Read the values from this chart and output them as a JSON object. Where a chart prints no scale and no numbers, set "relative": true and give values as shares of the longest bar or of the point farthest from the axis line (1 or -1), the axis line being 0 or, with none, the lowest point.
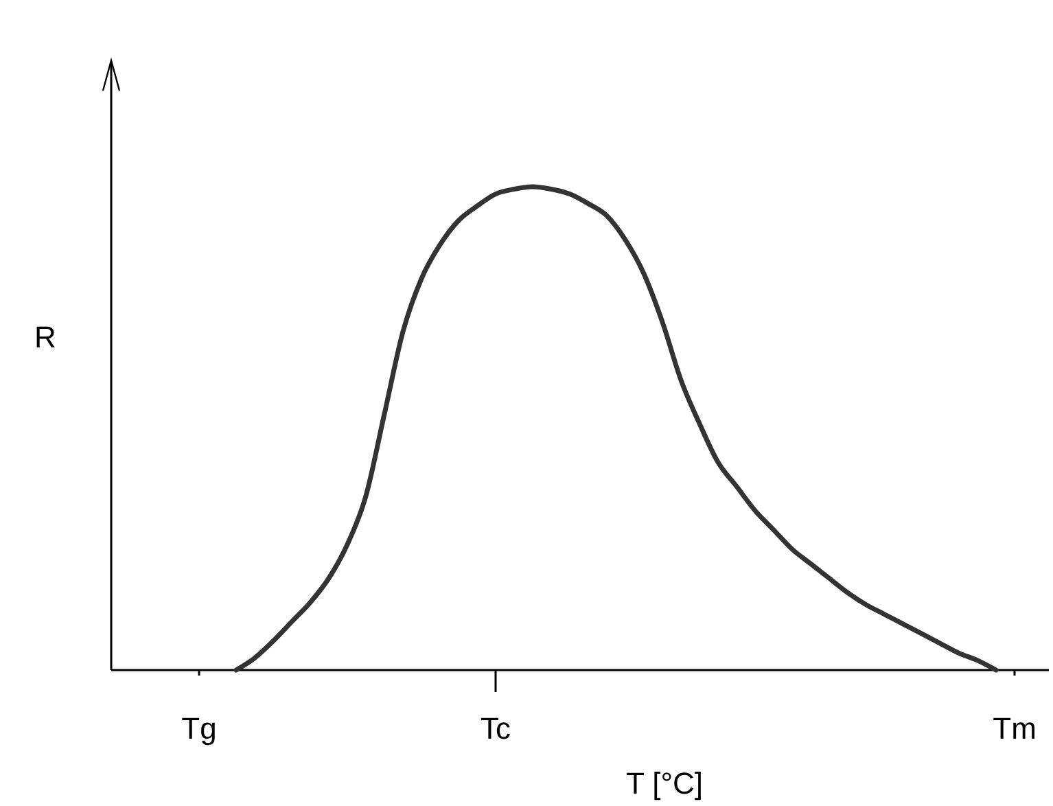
{
  "chart_data": {
    "type": "line",
    "relative": true,
    "xlabel": "T [°C]",
    "ylabel": "R",
    "categories": [
      null,
      null,
      null,
      null,
      "Tg",
      null,
      null,
      null,
      null,
      null,
      null,
      null,
      null,
      null,
      null,
      null,
      null,
      null,
      null,
      null,
      "Tc",
      null,
      null,
      null,
      null,
      null,
      null,
      null,
      null,
      null,
      null,
      null,
      null,
      null,
      null,
      null,
      null,
      null,
      null,
      null,
      null,
      null,
      null,
      null,
      null,
      null,
      null,
      null,
      "Tm"
    ],
    "series": [
      {
        "color": "#333333",
        "values": [
          null,
          null,
          null,
          null,
          null,
          null,
          0,
          0.025,
          0.06,
          0.1,
          0.14,
          0.19,
          0.26,
          0.36,
          0.53,
          0.7,
          0.81,
          0.88,
          0.93,
          0.96,
          0.985,
          0.995,
          1,
          0.995,
          0.985,
          0.965,
          0.94,
          0.89,
          0.82,
          0.72,
          0.6,
          0.51,
          0.43,
          0.38,
          0.33,
          0.29,
          0.25,
          0.22,
          0.19,
          0.16,
          0.135,
          0.115,
          0.095,
          0.075,
          0.055,
          0.035,
          0.02,
          0,
          null
        ]
      }
    ],
    "marker": "none",
    "line_style": "solid"
  }
}
